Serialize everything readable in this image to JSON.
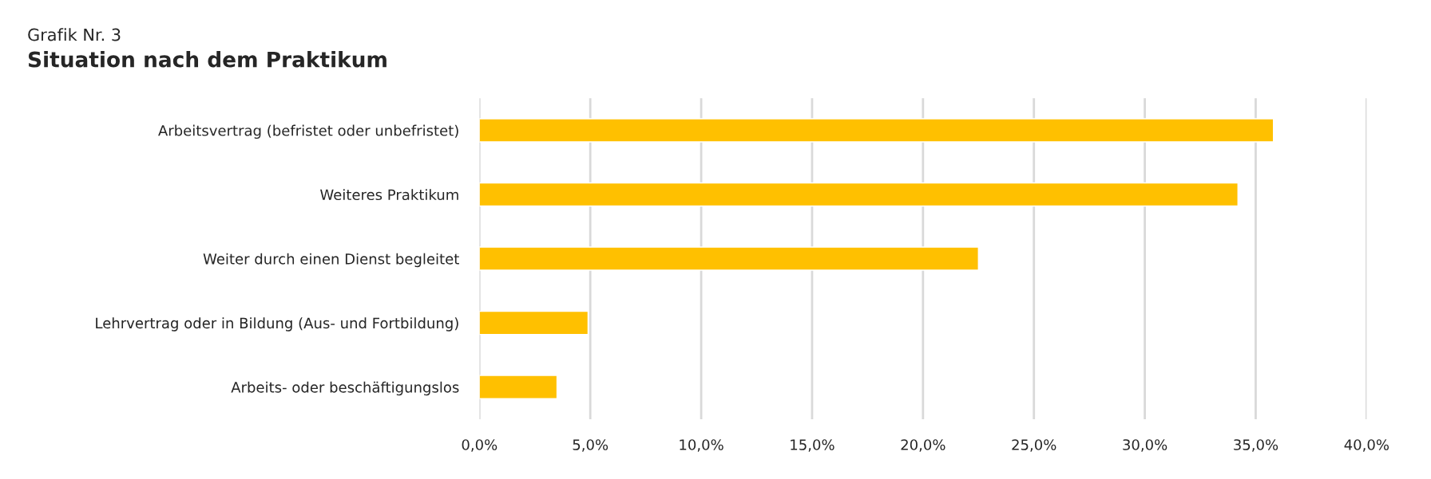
{
  "chart_data": {
    "type": "bar",
    "orientation": "horizontal",
    "subtitle": "Grafik Nr. 3",
    "title": "Situation nach dem Praktikum",
    "categories": [
      "Arbeitsvertrag (befristet oder unbefristet)",
      "Weiteres Praktikum",
      "Weiter durch einen Dienst begleitet",
      "Lehrvertrag oder in Bildung (Aus- und Fortbildung)",
      "Arbeits- oder beschäftigungslos"
    ],
    "values": [
      35.8,
      34.2,
      22.5,
      4.9,
      3.5
    ],
    "color": "#ffc000",
    "xlim": [
      0,
      40
    ],
    "xticks": [
      {
        "value": 0,
        "label": "0,0%"
      },
      {
        "value": 5,
        "label": "5,0%"
      },
      {
        "value": 10,
        "label": "10,0%"
      },
      {
        "value": 15,
        "label": "15,0%"
      },
      {
        "value": 20,
        "label": "20,0%"
      },
      {
        "value": 25,
        "label": "25,0%"
      },
      {
        "value": 30,
        "label": "30,0%"
      },
      {
        "value": 35,
        "label": "35,0%"
      },
      {
        "value": 40,
        "label": "40,0%"
      }
    ],
    "grid": "x",
    "legend": false
  }
}
